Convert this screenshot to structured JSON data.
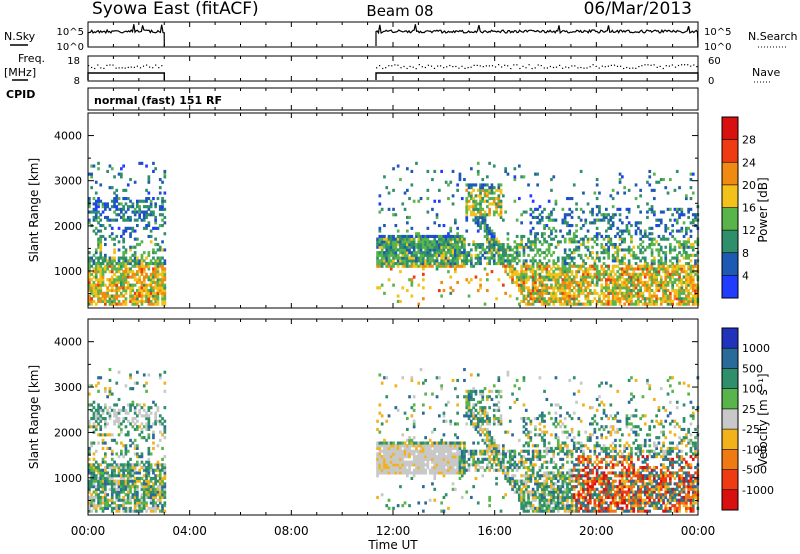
{
  "header": {
    "title": "Syowa East (fitACF)",
    "beam": "Beam 08",
    "date": "06/Mar/2013"
  },
  "left_labels": {
    "nsky": "N.Sky",
    "freq": "Freq.",
    "mhz": "[MHz]",
    "cpid": "CPID"
  },
  "right_labels": {
    "nsearch": "N.Search",
    "nave": "Nave"
  },
  "cpid_text": "normal (fast) 151 RF",
  "noise_ticks": {
    "top": "10^5",
    "bottom": "10^0"
  },
  "freq_ticks": {
    "left_top": "18",
    "left_bottom": "8",
    "right_top": "60",
    "right_bottom": "0"
  },
  "x_axis": {
    "label": "Time UT",
    "ticks": [
      "00:00",
      "04:00",
      "08:00",
      "12:00",
      "16:00",
      "20:00",
      "00:00"
    ]
  },
  "y_axis": {
    "label": "Slant Range [km]",
    "ticks": [
      "1000",
      "2000",
      "3000",
      "4000"
    ]
  },
  "power_scale": {
    "label": "Power [dB]",
    "ticks": [
      "4",
      "8",
      "12",
      "16",
      "20",
      "24",
      "28"
    ],
    "colors": [
      "#1f3cff",
      "#1e5ab4",
      "#2f8f6a",
      "#59b44c",
      "#f2c21b",
      "#f08a12",
      "#ee3b12",
      "#d81010"
    ]
  },
  "velocity_scale": {
    "label": "Velocity [m s⁻¹]",
    "ticks": [
      "1000",
      "500",
      "100",
      "25",
      "-25",
      "-100",
      "-500",
      "-1000"
    ],
    "colors": [
      "#2233bb",
      "#2a6a9a",
      "#2f8f6a",
      "#59b44c",
      "#c8c8c8",
      "#f2b21b",
      "#f07a12",
      "#ee3b12",
      "#d81010"
    ]
  },
  "chart_data": {
    "type": "heatmap",
    "panels": [
      "Power [dB]",
      "Velocity [m s⁻¹]"
    ],
    "x_range_hours": [
      0,
      24
    ],
    "y_range_km": [
      180,
      4500
    ],
    "data_windows_ut": [
      [
        "00:00",
        "03:00"
      ],
      [
        "11:20",
        "24:00"
      ]
    ],
    "power_range_db": [
      0,
      32
    ],
    "velocity_range": [
      -1500,
      1500
    ]
  }
}
